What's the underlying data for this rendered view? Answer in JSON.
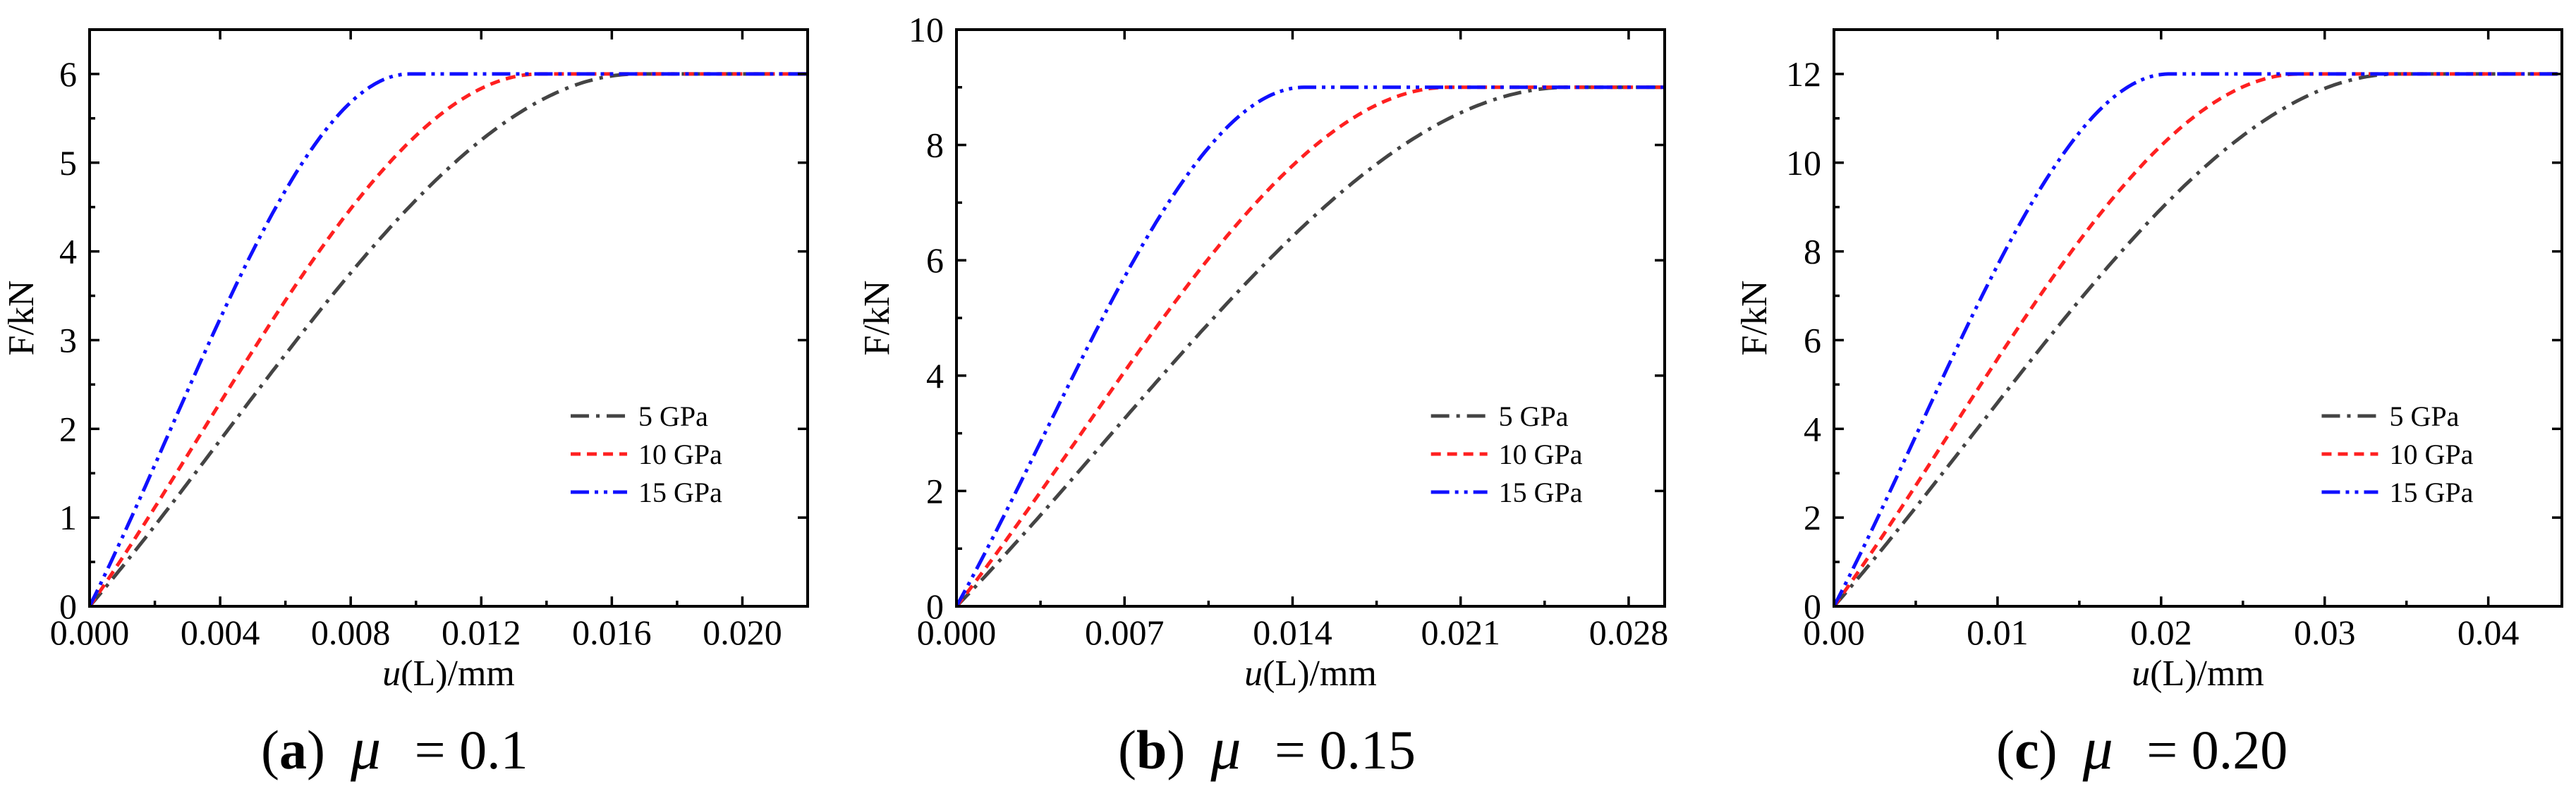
{
  "chart_data": [
    {
      "type": "line",
      "caption": {
        "letter": "a",
        "mu_symbol": "μ",
        "rest": " = 0.1"
      },
      "xlabel_italic": "u",
      "xlabel": "(L)/mm",
      "ylabel": "F/kN",
      "xlim": [
        0,
        0.022
      ],
      "ylim": [
        0,
        6.5
      ],
      "xticks": [
        0,
        0.004,
        0.008,
        0.012,
        0.016,
        0.02
      ],
      "xtick_labels": [
        "0.000",
        "0.004",
        "0.008",
        "0.012",
        "0.016",
        "0.020"
      ],
      "yticks": [
        0,
        1,
        2,
        3,
        4,
        5,
        6
      ],
      "ytick_labels": [
        "0",
        "1",
        "2",
        "3",
        "4",
        "5",
        "6"
      ],
      "legend_position": "lower-right",
      "series": [
        {
          "name": "5 GPa",
          "color": "#444444",
          "dash": "dashdot",
          "x_peak": 0.0168,
          "y_max": 6
        },
        {
          "name": "10 GPa",
          "color": "#ff2020",
          "dash": "dashed",
          "x_peak": 0.0138,
          "y_max": 6
        },
        {
          "name": "15 GPa",
          "color": "#1010ff",
          "dash": "dashdotdot",
          "x_peak": 0.0098,
          "y_max": 6
        }
      ]
    },
    {
      "type": "line",
      "caption": {
        "letter": "b",
        "mu_symbol": "μ",
        "rest": " = 0.15"
      },
      "xlabel_italic": "u",
      "xlabel": "(L)/mm",
      "ylabel": "F/kN",
      "xlim": [
        0,
        0.0295
      ],
      "ylim": [
        0,
        10
      ],
      "xticks": [
        0,
        0.007,
        0.014,
        0.021,
        0.028
      ],
      "xtick_labels": [
        "0.000",
        "0.007",
        "0.014",
        "0.021",
        "0.028"
      ],
      "yticks": [
        0,
        2,
        4,
        6,
        8,
        10
      ],
      "ytick_labels": [
        "0",
        "2",
        "4",
        "6",
        "8",
        "10"
      ],
      "legend_position": "lower-right",
      "series": [
        {
          "name": "5 GPa",
          "color": "#444444",
          "dash": "dashdot",
          "x_peak": 0.0255,
          "y_max": 9
        },
        {
          "name": "10 GPa",
          "color": "#ff2020",
          "dash": "dashed",
          "x_peak": 0.0205,
          "y_max": 9
        },
        {
          "name": "15 GPa",
          "color": "#1010ff",
          "dash": "dashdotdot",
          "x_peak": 0.0145,
          "y_max": 9
        }
      ]
    },
    {
      "type": "line",
      "caption": {
        "letter": "c",
        "mu_symbol": "μ",
        "rest": " = 0.20"
      },
      "xlabel_italic": "u",
      "xlabel": "(L)/mm",
      "ylabel": "F/kN",
      "xlim": [
        0,
        0.0445
      ],
      "ylim": [
        0,
        13
      ],
      "xticks": [
        0,
        0.01,
        0.02,
        0.03,
        0.04
      ],
      "xtick_labels": [
        "0.00",
        "0.01",
        "0.02",
        "0.03",
        "0.04"
      ],
      "yticks": [
        0,
        2,
        4,
        6,
        8,
        10,
        12
      ],
      "ytick_labels": [
        "0",
        "2",
        "4",
        "6",
        "8",
        "10",
        "12"
      ],
      "legend_position": "lower-right",
      "series": [
        {
          "name": "5 GPa",
          "color": "#444444",
          "dash": "dashdot",
          "x_peak": 0.0345,
          "y_max": 12
        },
        {
          "name": "10 GPa",
          "color": "#ff2020",
          "dash": "dashed",
          "x_peak": 0.0285,
          "y_max": 12
        },
        {
          "name": "15 GPa",
          "color": "#1010ff",
          "dash": "dashdotdot",
          "x_peak": 0.0205,
          "y_max": 12
        }
      ]
    }
  ]
}
